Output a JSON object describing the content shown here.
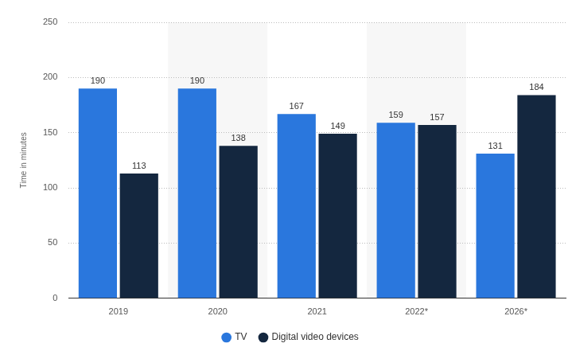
{
  "chart_data": {
    "type": "bar",
    "y_label": "Time in minutes",
    "categories": [
      "2019",
      "2020",
      "2021",
      "2022*",
      "2026*"
    ],
    "series": [
      {
        "name": "TV",
        "color": "#2a77dd",
        "values": [
          190,
          190,
          167,
          159,
          131
        ]
      },
      {
        "name": "Digital video devices",
        "color": "#14273f",
        "values": [
          113,
          138,
          149,
          157,
          184
        ]
      }
    ],
    "ylim": [
      0,
      250
    ],
    "yticks": [
      0,
      50,
      100,
      150,
      200,
      250
    ],
    "grid": true,
    "legend": "bottom",
    "data_labels": true
  }
}
